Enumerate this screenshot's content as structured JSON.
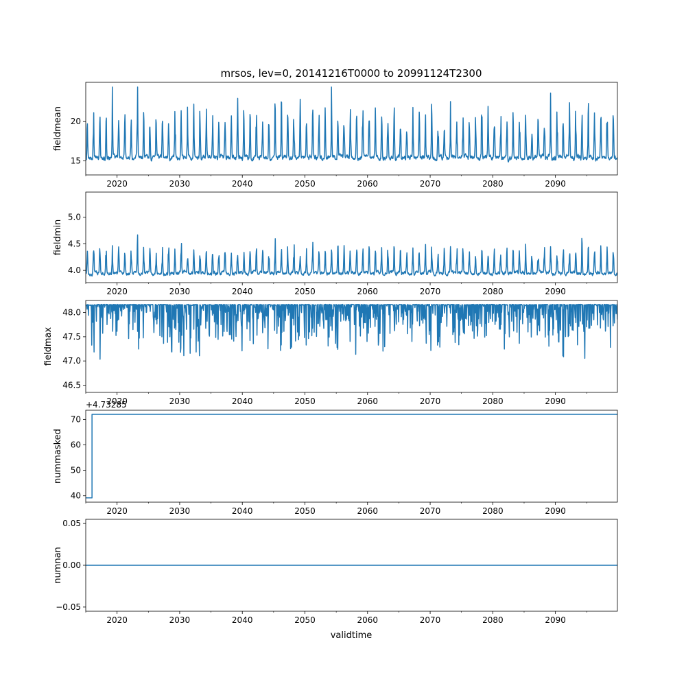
{
  "figure": {
    "title": "mrsos, lev=0, 20141216T0000 to 20991124T2300",
    "xlabel": "validtime"
  },
  "style": {
    "line_color": "#1f77b4",
    "axis_color": "#000000",
    "background": "#ffffff"
  },
  "chart_data": [
    {
      "type": "line",
      "ylabel": "fieldmean",
      "xlim": [
        2015.0,
        2099.9
      ],
      "x_ticks": [
        "2020",
        "2030",
        "2040",
        "2050",
        "2060",
        "2070",
        "2080",
        "2090"
      ],
      "x_tick_values": [
        2020,
        2030,
        2040,
        2050,
        2060,
        2070,
        2080,
        2090
      ],
      "ylim": [
        13.2,
        25.0
      ],
      "y_ticks": [
        "15",
        "20"
      ],
      "y_tick_values": [
        15,
        20
      ],
      "offset_text": "",
      "series": [
        {
          "name": "fieldmean",
          "base": 15.4,
          "amplitude": 6.5,
          "noise": 1.6,
          "spike_rate": 0.22,
          "spike_sign": 1,
          "min_clip": 13.6,
          "max_clip": 24.4,
          "seed": 11
        }
      ]
    },
    {
      "type": "line",
      "ylabel": "fieldmin",
      "xlim": [
        2015.0,
        2099.9
      ],
      "x_ticks": [
        "2020",
        "2030",
        "2040",
        "2050",
        "2060",
        "2070",
        "2080",
        "2090"
      ],
      "x_tick_values": [
        2020,
        2030,
        2040,
        2050,
        2060,
        2070,
        2080,
        2090
      ],
      "ylim": [
        3.77,
        5.47
      ],
      "y_ticks": [
        "4.0",
        "4.5",
        "5.0"
      ],
      "y_tick_values": [
        4.0,
        4.5,
        5.0
      ],
      "offset_text": "",
      "series": [
        {
          "name": "fieldmin",
          "base": 3.95,
          "amplitude": 0.55,
          "noise": 0.18,
          "spike_rate": 0.12,
          "spike_sign": 1,
          "min_clip": 3.85,
          "max_clip": 5.4,
          "seed": 23
        }
      ]
    },
    {
      "type": "line",
      "ylabel": "fieldmax",
      "xlim": [
        2015.0,
        2099.9
      ],
      "x_ticks": [
        "2020",
        "2030",
        "2040",
        "2050",
        "2060",
        "2070",
        "2080",
        "2090"
      ],
      "x_tick_values": [
        2020,
        2030,
        2040,
        2050,
        2060,
        2070,
        2080,
        2090
      ],
      "ylim": [
        46.35,
        48.25
      ],
      "y_ticks": [
        "46.5",
        "47.0",
        "47.5",
        "48.0"
      ],
      "y_tick_values": [
        46.5,
        47.0,
        47.5,
        48.0
      ],
      "offset_text": "",
      "series": [
        {
          "name": "fieldmax",
          "base": 48.17,
          "amplitude": 1.2,
          "noise": 0.25,
          "spike_rate": 0.45,
          "spike_sign": -1,
          "min_clip": 46.45,
          "max_clip": 48.18,
          "seed": 37
        }
      ]
    },
    {
      "type": "line",
      "ylabel": "nummasked",
      "xlim": [
        2015.0,
        2099.9
      ],
      "x_ticks": [
        "2020",
        "2030",
        "2040",
        "2050",
        "2060",
        "2070",
        "2080",
        "2090"
      ],
      "x_tick_values": [
        2020,
        2030,
        2040,
        2050,
        2060,
        2070,
        2080,
        2090
      ],
      "ylim": [
        37.5,
        73.6
      ],
      "y_ticks": [
        "40",
        "50",
        "60",
        "70"
      ],
      "y_tick_values": [
        40,
        50,
        60,
        70
      ],
      "offset_text": "+4.73285",
      "offset_overlap_tick": "2020",
      "series": [
        {
          "name": "nummasked",
          "step_points": [
            [
              2015.0,
              39.2
            ],
            [
              2016.0,
              39.2
            ],
            [
              2016.0,
              72.0
            ],
            [
              2099.9,
              72.0
            ]
          ]
        }
      ]
    },
    {
      "type": "line",
      "ylabel": "numnan",
      "xlim": [
        2015.0,
        2099.9
      ],
      "x_ticks": [
        "2020",
        "2030",
        "2040",
        "2050",
        "2060",
        "2070",
        "2080",
        "2090"
      ],
      "x_tick_values": [
        2020,
        2030,
        2040,
        2050,
        2060,
        2070,
        2080,
        2090
      ],
      "ylim": [
        -0.055,
        0.055
      ],
      "y_ticks": [
        "−0.05",
        "0.00",
        "0.05"
      ],
      "y_tick_values": [
        -0.05,
        0.0,
        0.05
      ],
      "offset_text": "",
      "series": [
        {
          "name": "numnan",
          "step_points": [
            [
              2015.0,
              0.0
            ],
            [
              2099.9,
              0.0
            ]
          ]
        }
      ]
    }
  ]
}
